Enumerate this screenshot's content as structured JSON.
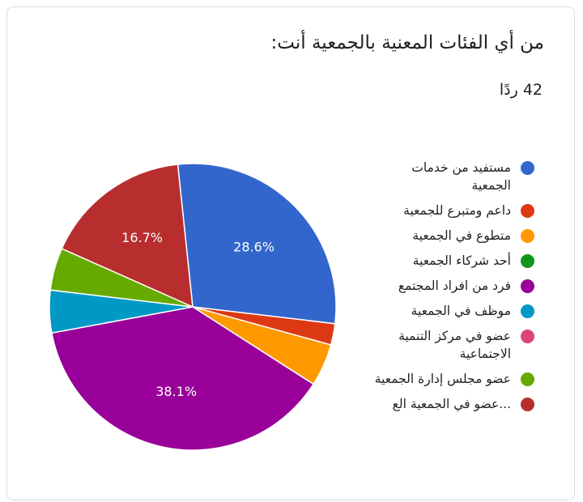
{
  "header": {
    "title": "من أي الفئات المعنية بالجمعية أنت:",
    "response_count": "42 ردًا"
  },
  "chart_data": {
    "type": "pie",
    "title": "",
    "start_angle_deg": -6,
    "slices": [
      {
        "label": "مستفيد من خدمات الجمعية",
        "value": 28.6,
        "color": "#3366cc",
        "data_label": "28.6%"
      },
      {
        "label": "داعم ومتبرع للجمعية",
        "value": 2.4,
        "color": "#dc3912",
        "data_label": ""
      },
      {
        "label": "متطوع في الجمعية",
        "value": 4.8,
        "color": "#ff9900",
        "data_label": ""
      },
      {
        "label": "أحد شركاء الجمعية",
        "value": 0,
        "color": "#109618",
        "data_label": ""
      },
      {
        "label": "فرد من افراد المجتمع",
        "value": 38.1,
        "color": "#990099",
        "data_label": "38.1%"
      },
      {
        "label": "موظف في الجمعية",
        "value": 4.8,
        "color": "#0099c6",
        "data_label": ""
      },
      {
        "label": "عضو في مركز التنمية الاجتماعية",
        "value": 0,
        "color": "#dd4477",
        "data_label": ""
      },
      {
        "label": "عضو مجلس إدارة الجمعية",
        "value": 4.8,
        "color": "#66aa00",
        "data_label": ""
      },
      {
        "label": "...عضو في الجمعية الع",
        "value": 16.7,
        "color": "#b82e2e",
        "data_label": "16.7%"
      }
    ],
    "legend_position": "right"
  }
}
